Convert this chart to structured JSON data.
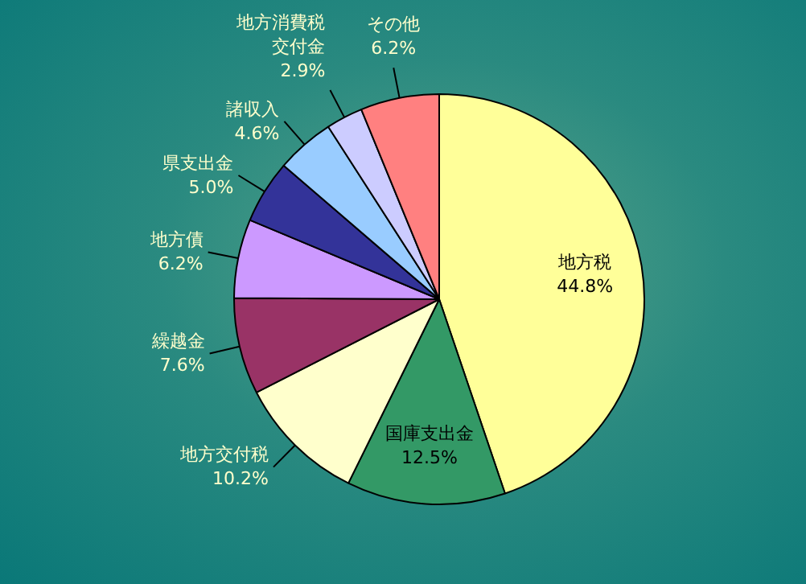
{
  "chart_data": {
    "type": "pie",
    "categories": [
      "地方税",
      "国庫支出金",
      "地方交付税",
      "繰越金",
      "地方債",
      "県支出金",
      "諸収入",
      "地方消費税交付金",
      "その他"
    ],
    "values": [
      44.8,
      12.5,
      10.2,
      7.6,
      6.2,
      5.0,
      4.6,
      2.9,
      6.2
    ],
    "value_labels": [
      "44.8%",
      "12.5%",
      "10.2%",
      "7.6%",
      "6.2%",
      "5.0%",
      "4.6%",
      "2.9%",
      "6.2%"
    ],
    "colors": [
      "#ffff99",
      "#339966",
      "#ffffcc",
      "#993366",
      "#cc99ff",
      "#333399",
      "#99ccff",
      "#ccccff",
      "#ff8080"
    ],
    "legend": false
  }
}
